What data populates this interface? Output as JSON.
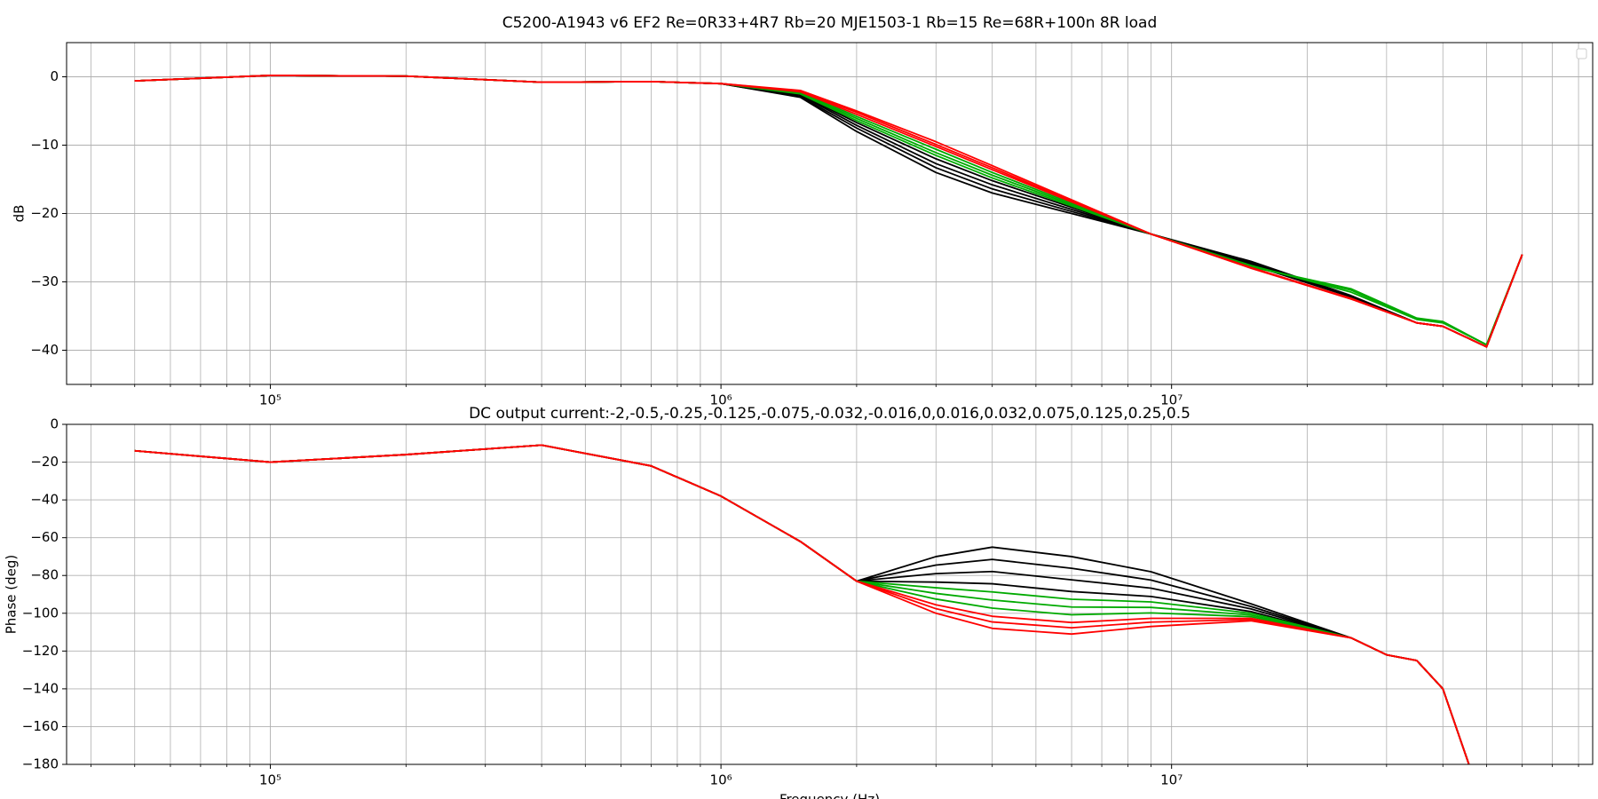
{
  "chart_data": [
    {
      "type": "line",
      "title": "C5200-A1943 v6 EF2 Re=0R33+4R7 Rb=20 MJE1503-1 Rb=15 Re=68R+100n 8R load",
      "ylabel": "dB",
      "log_x": true,
      "grid": true,
      "minor_grid": true,
      "legend": "upper right",
      "x": [
        50000,
        100000,
        200000,
        400000,
        700000,
        1000000,
        1500000,
        2000000,
        3000000,
        4000000,
        6000000,
        9000000,
        15000000,
        25000000,
        35000000,
        40000000,
        50000000,
        60000000
      ],
      "xlim": [
        35300,
        86000000
      ],
      "xticks": [
        {
          "value": 100000,
          "label": "10⁵"
        },
        {
          "value": 1000000,
          "label": "10⁶"
        },
        {
          "value": 10000000,
          "label": "10⁷"
        }
      ],
      "ylim": [
        -45,
        5
      ],
      "yticks": [
        {
          "value": -40,
          "label": "−40"
        },
        {
          "value": -30,
          "label": "−30"
        },
        {
          "value": -20,
          "label": "−20"
        },
        {
          "value": -10,
          "label": "−10"
        },
        0
      ],
      "series": [
        {
          "color": "#000000",
          "values": [
            -0.6,
            0.2,
            0.1,
            -0.8,
            -0.7,
            -1.0,
            -3,
            -8,
            -14,
            -17,
            -20,
            -23,
            -27,
            -32,
            -36,
            -36.5,
            -39.5,
            -26
          ]
        },
        {
          "color": "#000000",
          "values": [
            -0.6,
            0.2,
            0.1,
            -0.8,
            -0.7,
            -1.0,
            -2.9,
            -7.5,
            -13.3,
            -16.4,
            -19.7,
            -23,
            -27.2,
            -32.1,
            -36,
            -36.5,
            -39.5,
            -26
          ]
        },
        {
          "color": "#000000",
          "values": [
            -0.6,
            0.2,
            0.1,
            -0.8,
            -0.7,
            -1.0,
            -2.7,
            -7.1,
            -12.7,
            -15.8,
            -19.4,
            -23,
            -27.3,
            -32.1,
            -36,
            -36.5,
            -39.5,
            -26
          ]
        },
        {
          "color": "#000000",
          "values": [
            -0.6,
            0.2,
            0.1,
            -0.8,
            -0.7,
            -1.0,
            -2.6,
            -6.7,
            -12,
            -15.2,
            -19.1,
            -23,
            -27.5,
            -32.2,
            -36,
            -36.5,
            -39.5,
            -26
          ]
        },
        {
          "color": "#00aa00",
          "values": [
            -0.6,
            0.2,
            0.1,
            -0.8,
            -0.7,
            -1.0,
            -2.5,
            -6.4,
            -11.5,
            -14.8,
            -18.9,
            -23,
            -27.6,
            -31.5,
            -35.5,
            -36,
            -39.2,
            -26
          ]
        },
        {
          "color": "#00aa00",
          "values": [
            -0.6,
            0.2,
            0.1,
            -0.8,
            -0.7,
            -1.0,
            -2.4,
            -6.1,
            -11.1,
            -14.4,
            -18.7,
            -23,
            -27.7,
            -31.2,
            -35.4,
            -35.9,
            -39.2,
            -26
          ]
        },
        {
          "color": "#00aa00",
          "values": [
            -0.6,
            0.2,
            0.1,
            -0.8,
            -0.7,
            -1.0,
            -2.3,
            -5.8,
            -10.6,
            -14,
            -18.5,
            -23,
            -27.8,
            -31,
            -35.3,
            -35.8,
            -39.2,
            -26
          ]
        },
        {
          "color": "#ff0000",
          "values": [
            -0.6,
            0.2,
            0.1,
            -0.8,
            -0.7,
            -1.0,
            -2.2,
            -5.5,
            -10.2,
            -13.6,
            -18.3,
            -23,
            -27.9,
            -32.4,
            -36,
            -36.5,
            -39.5,
            -26
          ]
        },
        {
          "color": "#ff0000",
          "values": [
            -0.6,
            0.2,
            0.1,
            -0.8,
            -0.7,
            -1.0,
            -2.1,
            -5.2,
            -9.9,
            -13.3,
            -18.2,
            -23,
            -27.9,
            -32.5,
            -36,
            -36.5,
            -39.5,
            -26
          ]
        },
        {
          "color": "#ff0000",
          "values": [
            -0.6,
            0.2,
            0.1,
            -0.8,
            -0.7,
            -1.0,
            -2,
            -5,
            -9.5,
            -13,
            -18,
            -23,
            -28,
            -32.5,
            -36,
            -36.5,
            -39.5,
            -26
          ]
        }
      ]
    },
    {
      "type": "line",
      "title": "DC output current:-2,-0.5,-0.25,-0.125,-0.075,-0.032,-0.016,0,0.016,0.032,0.075,0.125,0.25,0.5",
      "xlabel": "Frequency (Hz)",
      "ylabel": "Phase (deg)",
      "log_x": true,
      "grid": true,
      "minor_grid": true,
      "x": [
        50000,
        100000,
        200000,
        400000,
        700000,
        1000000,
        1500000,
        2000000,
        3000000,
        4000000,
        6000000,
        9000000,
        15000000,
        25000000,
        30000000,
        35000000,
        40000000,
        46000000
      ],
      "xlim": [
        35300,
        86000000
      ],
      "xticks": [
        {
          "value": 100000,
          "label": "10⁵"
        },
        {
          "value": 1000000,
          "label": "10⁶"
        },
        {
          "value": 10000000,
          "label": "10⁷"
        }
      ],
      "ylim": [
        -180,
        0
      ],
      "yticks": [
        {
          "value": -180,
          "label": "−180"
        },
        {
          "value": -160,
          "label": "−160"
        },
        {
          "value": -140,
          "label": "−140"
        },
        {
          "value": -120,
          "label": "−120"
        },
        {
          "value": -100,
          "label": "−100"
        },
        {
          "value": -80,
          "label": "−80"
        },
        {
          "value": -60,
          "label": "−60"
        },
        {
          "value": -40,
          "label": "−40"
        },
        {
          "value": -20,
          "label": "−20"
        },
        0
      ],
      "series": [
        {
          "color": "#000000",
          "values": [
            -14,
            -20,
            -16,
            -11,
            -22,
            -38,
            -62,
            -83,
            -70,
            -65,
            -70,
            -78,
            -95,
            -113,
            -122,
            -125,
            -140,
            -182
          ]
        },
        {
          "color": "#000000",
          "values": [
            -14,
            -20,
            -16,
            -11,
            -22,
            -38,
            -62,
            -83,
            -74.5,
            -71.5,
            -76.2,
            -82.4,
            -96.4,
            -113,
            -122,
            -125,
            -140,
            -182
          ]
        },
        {
          "color": "#000000",
          "values": [
            -14,
            -20,
            -16,
            -11,
            -22,
            -38,
            -62,
            -83,
            -79,
            -77.9,
            -82.3,
            -86.7,
            -97.7,
            -113,
            -122,
            -125,
            -140,
            -182
          ]
        },
        {
          "color": "#000000",
          "values": [
            -14,
            -20,
            -16,
            -11,
            -22,
            -38,
            -62,
            -83,
            -83.5,
            -84.4,
            -88.5,
            -91.1,
            -99.1,
            -113,
            -122,
            -125,
            -140,
            -182
          ]
        },
        {
          "color": "#00aa00",
          "values": [
            -14,
            -20,
            -16,
            -11,
            -22,
            -38,
            -62,
            -83,
            -86.5,
            -88.7,
            -92.6,
            -94,
            -100,
            -113,
            -122,
            -125,
            -140,
            -182
          ]
        },
        {
          "color": "#00aa00",
          "values": [
            -14,
            -20,
            -16,
            -11,
            -22,
            -38,
            -62,
            -83,
            -89.5,
            -93,
            -96.7,
            -96.9,
            -100.9,
            -113,
            -122,
            -125,
            -140,
            -182
          ]
        },
        {
          "color": "#00aa00",
          "values": [
            -14,
            -20,
            -16,
            -11,
            -22,
            -38,
            -62,
            -83,
            -92.5,
            -97.3,
            -100.8,
            -99.8,
            -101.8,
            -113,
            -122,
            -125,
            -140,
            -182
          ]
        },
        {
          "color": "#ff0000",
          "values": [
            -14,
            -20,
            -16,
            -11,
            -22,
            -38,
            -62,
            -83,
            -95.5,
            -101.6,
            -104.9,
            -102.7,
            -102.7,
            -113,
            -122,
            -125,
            -140,
            -182
          ]
        },
        {
          "color": "#ff0000",
          "values": [
            -14,
            -20,
            -16,
            -11,
            -22,
            -38,
            -62,
            -83,
            -97.6,
            -104.6,
            -107.7,
            -104.7,
            -103.3,
            -113,
            -122,
            -125,
            -140,
            -182
          ]
        },
        {
          "color": "#ff0000",
          "values": [
            -14,
            -20,
            -16,
            -11,
            -22,
            -38,
            -62,
            -83,
            -100,
            -108,
            -111,
            -107,
            -104,
            -113,
            -122,
            -125,
            -140,
            -182
          ]
        }
      ]
    }
  ]
}
